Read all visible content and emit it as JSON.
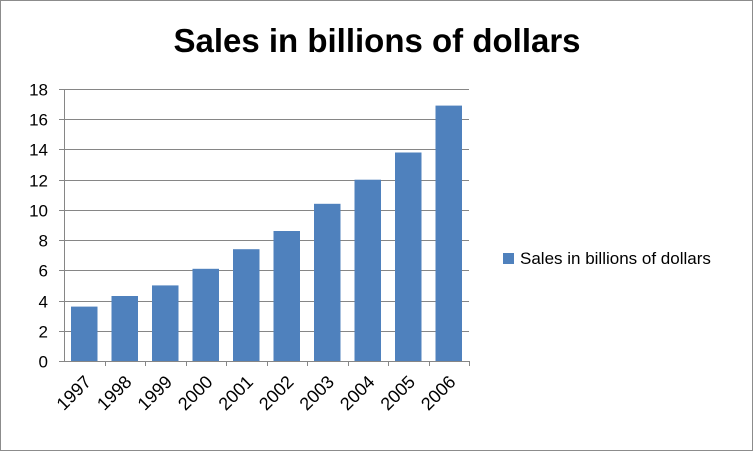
{
  "chart_data": {
    "type": "bar",
    "title": "Sales in billions of dollars",
    "xlabel": "",
    "ylabel": "",
    "categories": [
      "1997",
      "1998",
      "1999",
      "2000",
      "2001",
      "2002",
      "2003",
      "2004",
      "2005",
      "2006"
    ],
    "series": [
      {
        "name": "Sales in billions of dollars",
        "values": [
          3.6,
          4.3,
          5.0,
          6.1,
          7.4,
          8.6,
          10.4,
          12.0,
          13.8,
          16.9
        ],
        "color": "#4f81bd"
      }
    ],
    "ylim": [
      0,
      18
    ],
    "yticks": [
      0,
      2,
      4,
      6,
      8,
      10,
      12,
      14,
      16,
      18
    ],
    "ytick_labels": [
      "0",
      "2",
      "4",
      "6",
      "8",
      "10",
      "12",
      "14",
      "16",
      "18"
    ],
    "grid": true,
    "legend": "right"
  }
}
